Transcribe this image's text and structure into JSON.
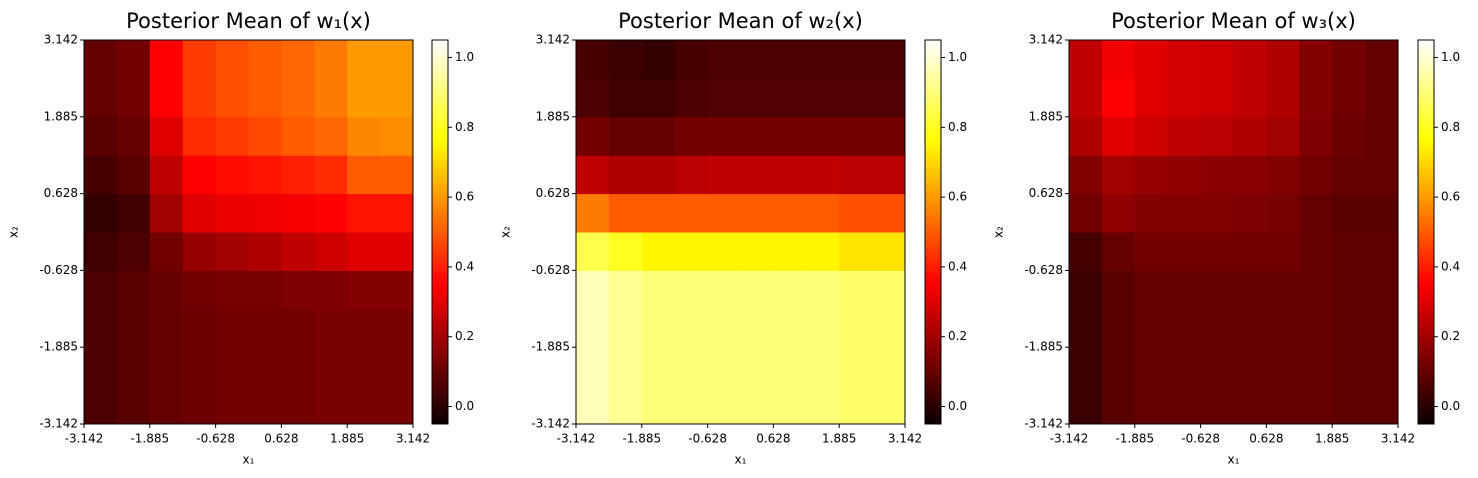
{
  "chart_data": [
    {
      "type": "heatmap",
      "title": "Posterior Mean of w₁(x)",
      "xlabel": "x₁",
      "ylabel": "x₂",
      "colormap": "hot",
      "xlim": [
        -3.142,
        3.142
      ],
      "ylim": [
        -3.142,
        3.142
      ],
      "xticks": [
        -3.142,
        -1.885,
        -0.628,
        0.628,
        1.885,
        3.142
      ],
      "yticks": [
        -3.142,
        -1.885,
        -0.628,
        0.628,
        1.885,
        3.142
      ],
      "clim": [
        -0.05,
        1.05
      ],
      "cticks": [
        {
          "value": 0,
          "label": "0.0"
        },
        0.2,
        0.4,
        0.6,
        0.8,
        {
          "value": 1,
          "label": "1.0"
        }
      ],
      "z": [
        [
          0.06,
          0.08,
          0.1,
          0.11,
          0.12,
          0.12,
          0.12,
          0.13,
          0.13,
          0.13
        ],
        [
          0.06,
          0.08,
          0.1,
          0.11,
          0.12,
          0.12,
          0.12,
          0.13,
          0.13,
          0.13
        ],
        [
          0.06,
          0.08,
          0.1,
          0.11,
          0.12,
          0.12,
          0.12,
          0.13,
          0.13,
          0.13
        ],
        [
          0.06,
          0.08,
          0.1,
          0.12,
          0.13,
          0.13,
          0.14,
          0.14,
          0.15,
          0.15
        ],
        [
          0.04,
          0.06,
          0.12,
          0.18,
          0.2,
          0.22,
          0.25,
          0.27,
          0.3,
          0.3
        ],
        [
          0.02,
          0.04,
          0.2,
          0.3,
          0.32,
          0.33,
          0.34,
          0.35,
          0.38,
          0.38
        ],
        [
          0.05,
          0.08,
          0.25,
          0.35,
          0.37,
          0.38,
          0.4,
          0.42,
          0.5,
          0.5
        ],
        [
          0.08,
          0.1,
          0.3,
          0.42,
          0.45,
          0.47,
          0.5,
          0.52,
          0.57,
          0.58
        ],
        [
          0.1,
          0.12,
          0.35,
          0.45,
          0.48,
          0.5,
          0.52,
          0.55,
          0.6,
          0.6
        ],
        [
          0.1,
          0.12,
          0.35,
          0.45,
          0.48,
          0.5,
          0.52,
          0.55,
          0.6,
          0.6
        ]
      ]
    },
    {
      "type": "heatmap",
      "title": "Posterior Mean of w₂(x)",
      "xlabel": "x₁",
      "ylabel": "x₂",
      "colormap": "hot",
      "xlim": [
        -3.142,
        3.142
      ],
      "ylim": [
        -3.142,
        3.142
      ],
      "xticks": [
        -3.142,
        -1.885,
        -0.628,
        0.628,
        1.885,
        3.142
      ],
      "yticks": [
        -3.142,
        -1.885,
        -0.628,
        0.628,
        1.885,
        3.142
      ],
      "clim": [
        -0.05,
        1.05
      ],
      "cticks": [
        {
          "value": 0,
          "label": "0.0"
        },
        0.2,
        0.4,
        0.6,
        0.8,
        {
          "value": 1,
          "label": "1.0"
        }
      ],
      "z": [
        [
          0.97,
          0.93,
          0.9,
          0.9,
          0.9,
          0.9,
          0.9,
          0.9,
          0.88,
          0.88
        ],
        [
          0.97,
          0.93,
          0.9,
          0.9,
          0.9,
          0.9,
          0.9,
          0.9,
          0.88,
          0.88
        ],
        [
          0.97,
          0.93,
          0.9,
          0.9,
          0.9,
          0.9,
          0.9,
          0.9,
          0.88,
          0.88
        ],
        [
          0.97,
          0.93,
          0.9,
          0.9,
          0.9,
          0.9,
          0.9,
          0.9,
          0.88,
          0.88
        ],
        [
          0.85,
          0.8,
          0.75,
          0.75,
          0.75,
          0.75,
          0.75,
          0.75,
          0.72,
          0.72
        ],
        [
          0.55,
          0.5,
          0.5,
          0.5,
          0.5,
          0.5,
          0.5,
          0.5,
          0.48,
          0.48
        ],
        [
          0.25,
          0.22,
          0.22,
          0.24,
          0.25,
          0.25,
          0.25,
          0.25,
          0.24,
          0.24
        ],
        [
          0.12,
          0.1,
          0.1,
          0.12,
          0.12,
          0.12,
          0.12,
          0.12,
          0.12,
          0.12
        ],
        [
          0.06,
          0.04,
          0.04,
          0.06,
          0.07,
          0.07,
          0.07,
          0.07,
          0.07,
          0.07
        ],
        [
          0.05,
          0.03,
          0.02,
          0.05,
          0.06,
          0.06,
          0.06,
          0.06,
          0.06,
          0.06
        ]
      ]
    },
    {
      "type": "heatmap",
      "title": "Posterior Mean of w₃(x)",
      "xlabel": "x₁",
      "ylabel": "x₂",
      "colormap": "hot",
      "xlim": [
        -3.142,
        3.142
      ],
      "ylim": [
        -3.142,
        3.142
      ],
      "xticks": [
        -3.142,
        -1.885,
        -0.628,
        0.628,
        1.885,
        3.142
      ],
      "yticks": [
        -3.142,
        -1.885,
        -0.628,
        0.628,
        1.885,
        3.142
      ],
      "clim": [
        -0.05,
        1.05
      ],
      "cticks": [
        {
          "value": 0,
          "label": "0.0"
        },
        0.2,
        0.4,
        0.6,
        0.8,
        {
          "value": 1,
          "label": "1.0"
        }
      ],
      "z": [
        [
          0.03,
          0.08,
          0.1,
          0.1,
          0.1,
          0.1,
          0.1,
          0.1,
          0.09,
          0.09
        ],
        [
          0.03,
          0.08,
          0.1,
          0.1,
          0.1,
          0.1,
          0.1,
          0.1,
          0.09,
          0.09
        ],
        [
          0.03,
          0.08,
          0.1,
          0.1,
          0.1,
          0.1,
          0.1,
          0.1,
          0.09,
          0.09
        ],
        [
          0.03,
          0.08,
          0.1,
          0.1,
          0.1,
          0.1,
          0.1,
          0.1,
          0.09,
          0.09
        ],
        [
          0.05,
          0.1,
          0.12,
          0.12,
          0.12,
          0.12,
          0.12,
          0.1,
          0.09,
          0.09
        ],
        [
          0.12,
          0.17,
          0.15,
          0.15,
          0.15,
          0.14,
          0.13,
          0.1,
          0.08,
          0.08
        ],
        [
          0.15,
          0.2,
          0.18,
          0.17,
          0.16,
          0.16,
          0.15,
          0.12,
          0.1,
          0.1
        ],
        [
          0.22,
          0.3,
          0.27,
          0.25,
          0.24,
          0.22,
          0.2,
          0.14,
          0.11,
          0.1
        ],
        [
          0.25,
          0.35,
          0.3,
          0.28,
          0.27,
          0.25,
          0.22,
          0.15,
          0.12,
          0.1
        ],
        [
          0.25,
          0.33,
          0.3,
          0.28,
          0.27,
          0.25,
          0.22,
          0.15,
          0.12,
          0.1
        ]
      ]
    }
  ]
}
